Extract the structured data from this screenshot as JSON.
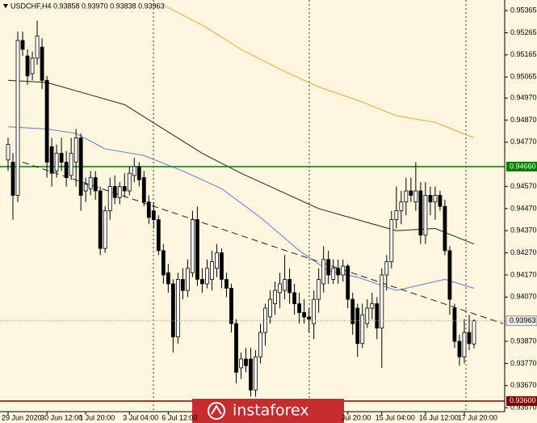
{
  "chart_data": {
    "type": "candlestick",
    "title": "USDCHF,H4  0.93858 0.93970 0.93838 0.93963",
    "up_color": "#ffffff",
    "down_color": "#000000",
    "open": [
      0.9469,
      0.9468,
      0.9453,
      0.9523,
      0.9516,
      0.9508,
      0.9515,
      0.952,
      0.9505,
      0.9475,
      0.9464,
      0.9472,
      0.9468,
      0.9462,
      0.9468,
      0.9479,
      0.9455,
      0.9456,
      0.9461,
      0.9455,
      0.9429,
      0.9446,
      0.9457,
      0.9452,
      0.9457,
      0.9455,
      0.9462,
      0.9466,
      0.9461,
      0.945,
      0.9446,
      0.9442,
      0.9428,
      0.9418,
      0.9413,
      0.9389,
      0.9415,
      0.941,
      0.9418,
      0.9442,
      0.9415,
      0.9413,
      0.9415,
      0.942,
      0.9427,
      0.9415,
      0.9411,
      0.9395,
      0.9375,
      0.9379,
      0.9379,
      0.9365,
      0.938,
      0.9391,
      0.9398,
      0.9404,
      0.9409,
      0.941,
      0.9415,
      0.9409,
      0.9404,
      0.94,
      0.9398,
      0.9395,
      0.9406,
      0.9413,
      0.9424,
      0.9415,
      0.942,
      0.9417,
      0.9421,
      0.9406,
      0.9402,
      0.9386,
      0.9395,
      0.9402,
      0.9404,
      0.9393,
      0.9417,
      0.9423,
      0.9442,
      0.9446,
      0.945,
      0.9455,
      0.945,
      0.9455,
      0.9435,
      0.9453,
      0.945,
      0.9453,
      0.9448,
      0.9428,
      0.9402,
      0.9387,
      0.938,
      0.9391,
      0.93858
    ],
    "high": [
      0.9479,
      0.9472,
      0.9527,
      0.9527,
      0.9519,
      0.9518,
      0.9532,
      0.9524,
      0.9507,
      0.9479,
      0.9476,
      0.9479,
      0.9473,
      0.9479,
      0.9483,
      0.9481,
      0.9461,
      0.9464,
      0.9464,
      0.9457,
      0.9448,
      0.9461,
      0.9462,
      0.9459,
      0.9463,
      0.9466,
      0.947,
      0.9468,
      0.9464,
      0.9453,
      0.945,
      0.9444,
      0.9431,
      0.9422,
      0.9415,
      0.9418,
      0.942,
      0.9424,
      0.9446,
      0.9448,
      0.942,
      0.9424,
      0.9428,
      0.9431,
      0.9429,
      0.9418,
      0.9413,
      0.9397,
      0.9382,
      0.9384,
      0.9384,
      0.9383,
      0.9395,
      0.9404,
      0.941,
      0.9414,
      0.9418,
      0.9426,
      0.942,
      0.9413,
      0.9409,
      0.9406,
      0.9402,
      0.941,
      0.942,
      0.943,
      0.9428,
      0.9424,
      0.9424,
      0.9424,
      0.9422,
      0.9409,
      0.9404,
      0.9404,
      0.9406,
      0.9409,
      0.9407,
      0.942,
      0.9426,
      0.9446,
      0.9457,
      0.9455,
      0.9461,
      0.9461,
      0.9468,
      0.9459,
      0.9459,
      0.9457,
      0.9457,
      0.9455,
      0.9451,
      0.943,
      0.9404,
      0.939,
      0.9397,
      0.9399,
      0.9397
    ],
    "low": [
      0.9464,
      0.9442,
      0.945,
      0.9516,
      0.9503,
      0.9505,
      0.9512,
      0.9501,
      0.9461,
      0.9457,
      0.9461,
      0.9464,
      0.9457,
      0.946,
      0.9457,
      0.9446,
      0.945,
      0.9453,
      0.9451,
      0.9426,
      0.9427,
      0.9442,
      0.9449,
      0.9449,
      0.9452,
      0.9453,
      0.9459,
      0.9457,
      0.9448,
      0.944,
      0.9438,
      0.9426,
      0.9413,
      0.9409,
      0.9382,
      0.9386,
      0.9406,
      0.9407,
      0.9416,
      0.9412,
      0.9409,
      0.9411,
      0.941,
      0.9416,
      0.9411,
      0.9407,
      0.9391,
      0.9368,
      0.937,
      0.9373,
      0.9362,
      0.9362,
      0.9377,
      0.9385,
      0.9395,
      0.9399,
      0.9402,
      0.9406,
      0.9404,
      0.9399,
      0.9395,
      0.9395,
      0.9391,
      0.9388,
      0.94,
      0.9409,
      0.9413,
      0.9413,
      0.9413,
      0.9414,
      0.9402,
      0.939,
      0.938,
      0.9384,
      0.9393,
      0.9397,
      0.9388,
      0.9375,
      0.941,
      0.942,
      0.9438,
      0.944,
      0.9444,
      0.945,
      0.9446,
      0.9431,
      0.9431,
      0.9444,
      0.9442,
      0.9446,
      0.9426,
      0.9399,
      0.9384,
      0.9376,
      0.9377,
      0.9383,
      0.93838
    ],
    "close": [
      0.9476,
      0.9453,
      0.9523,
      0.9519,
      0.9507,
      0.9515,
      0.9525,
      0.9505,
      0.9468,
      0.9463,
      0.9472,
      0.9468,
      0.9461,
      0.9472,
      0.9479,
      0.9453,
      0.9458,
      0.9461,
      0.9455,
      0.9429,
      0.9446,
      0.9457,
      0.9452,
      0.9457,
      0.9455,
      0.9463,
      0.9466,
      0.946,
      0.945,
      0.9443,
      0.9442,
      0.9428,
      0.9417,
      0.9413,
      0.9389,
      0.9415,
      0.941,
      0.942,
      0.9442,
      0.9415,
      0.9413,
      0.942,
      0.9423,
      0.9427,
      0.9415,
      0.9411,
      0.9395,
      0.9373,
      0.9379,
      0.9376,
      0.9365,
      0.938,
      0.9391,
      0.9402,
      0.9406,
      0.941,
      0.9413,
      0.9415,
      0.9409,
      0.9404,
      0.94,
      0.9398,
      0.9397,
      0.9406,
      0.9415,
      0.9424,
      0.9417,
      0.942,
      0.9417,
      0.9421,
      0.9406,
      0.9395,
      0.9386,
      0.9399,
      0.9402,
      0.9404,
      0.9393,
      0.9417,
      0.9423,
      0.9442,
      0.9446,
      0.945,
      0.9455,
      0.9453,
      0.9455,
      0.9435,
      0.9453,
      0.945,
      0.9453,
      0.9448,
      0.9428,
      0.9406,
      0.9387,
      0.938,
      0.9391,
      0.9386,
      0.93963
    ],
    "ylim": [
      0.93552,
      0.95413
    ],
    "yticks": [
      0.95365,
      0.95265,
      0.95165,
      0.95065,
      {
        "value": 0.9497,
        "label": "0.94970"
      },
      {
        "value": 0.9487,
        "label": "0.94870"
      },
      {
        "value": 0.9477,
        "label": "0.94770"
      },
      {
        "value": 0.9457,
        "label": "0.94570"
      },
      {
        "value": 0.9447,
        "label": "0.94470"
      },
      {
        "value": 0.9437,
        "label": "0.94370"
      },
      {
        "value": 0.9427,
        "label": "0.94270"
      },
      {
        "value": 0.9417,
        "label": "0.94170"
      },
      {
        "value": 0.9407,
        "label": "0.94070"
      },
      {
        "value": 0.9387,
        "label": "0.93870"
      },
      {
        "value": 0.9377,
        "label": "0.93770"
      },
      {
        "value": 0.9367,
        "label": "0.93670"
      },
      {
        "value": 0.9357,
        "label": "0.93570"
      }
    ],
    "x_labels": [
      {
        "index": 0,
        "label": "29 Jun 2020"
      },
      {
        "index": 8,
        "label": "30 Jun 12:00"
      },
      {
        "index": 16,
        "label": "1 Jul 20:00"
      },
      {
        "index": 25,
        "label": "3 Jul 04:00"
      },
      {
        "index": 33,
        "label": "6 Jul 12:00"
      },
      {
        "index": 70,
        "label": "Jul 20:00"
      },
      {
        "index": 77,
        "label": "15 Jul 04:00"
      },
      {
        "index": 86,
        "label": "16 Jul 12:00"
      },
      {
        "index": 94,
        "label": "17 Jul 20:00"
      }
    ],
    "levels": [
      {
        "value": 0.9466,
        "label": "0.94660",
        "color": "#008000"
      },
      {
        "value": 0.936,
        "label": "0.93600",
        "color": "#800000"
      }
    ],
    "moving_averages": [
      {
        "color": "#f5a33c",
        "x": [
          32,
          40,
          48,
          56,
          64,
          72,
          80,
          88,
          96
        ],
        "values": [
          0.9539,
          0.953,
          0.9519,
          0.951,
          0.9502,
          0.9496,
          0.9489,
          0.9486,
          0.9479
        ]
      },
      {
        "color": "#222222",
        "x": [
          0,
          8,
          16,
          24,
          32,
          40,
          48,
          56,
          64,
          72,
          80,
          88,
          96
        ],
        "values": [
          0.9505,
          0.9504,
          0.9499,
          0.9494,
          0.9483,
          0.9472,
          0.9463,
          0.9455,
          0.9447,
          0.9442,
          0.9437,
          0.9438,
          0.9431
        ]
      },
      {
        "color": "#5b7fd6",
        "x": [
          0,
          8,
          14,
          20,
          28,
          36,
          44,
          52,
          60,
          66,
          72,
          80,
          86,
          90,
          96
        ],
        "values": [
          0.9484,
          0.9483,
          0.9481,
          0.9474,
          0.9471,
          0.9464,
          0.9456,
          0.9443,
          0.9428,
          0.9419,
          0.9416,
          0.941,
          0.9413,
          0.9415,
          0.9411
        ]
      }
    ],
    "trendline": {
      "x": [
        3,
        102
      ],
      "y": [
        0.9468,
        0.9395
      ]
    },
    "watermark": "instaforex"
  }
}
